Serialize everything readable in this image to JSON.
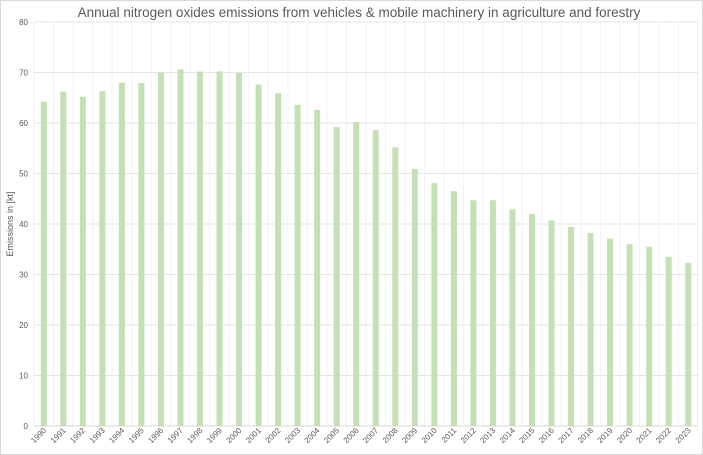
{
  "chart_data": {
    "type": "bar",
    "title": "Annual nitrogen oxides emissions from vehicles & mobile machinery in agriculture and forestry",
    "xlabel": "",
    "ylabel": "Emissions in [kt]",
    "ylim": [
      0,
      80
    ],
    "yticks": [
      0,
      10,
      20,
      30,
      40,
      50,
      60,
      70,
      80
    ],
    "grid": true,
    "legend": "none",
    "bar_color": "#c5e0b4",
    "categories": [
      "1990",
      "1991",
      "1992",
      "1993",
      "1994",
      "1995",
      "1996",
      "1997",
      "1998",
      "1999",
      "2000",
      "2001",
      "2002",
      "2003",
      "2004",
      "2005",
      "2006",
      "2007",
      "2008",
      "2009",
      "2010",
      "2011",
      "2012",
      "2013",
      "2014",
      "2015",
      "2016",
      "2017",
      "2018",
      "2019",
      "2020",
      "2021",
      "2022",
      "2023"
    ],
    "values": [
      64.2,
      66.2,
      65.2,
      66.3,
      68.0,
      67.9,
      70.0,
      70.6,
      70.2,
      70.2,
      69.9,
      67.6,
      65.9,
      63.6,
      62.6,
      59.2,
      60.2,
      58.6,
      55.2,
      50.9,
      48.1,
      46.5,
      44.7,
      44.7,
      42.9,
      42.0,
      40.7,
      39.4,
      38.2,
      37.1,
      36.0,
      35.5,
      33.5,
      32.3
    ]
  }
}
